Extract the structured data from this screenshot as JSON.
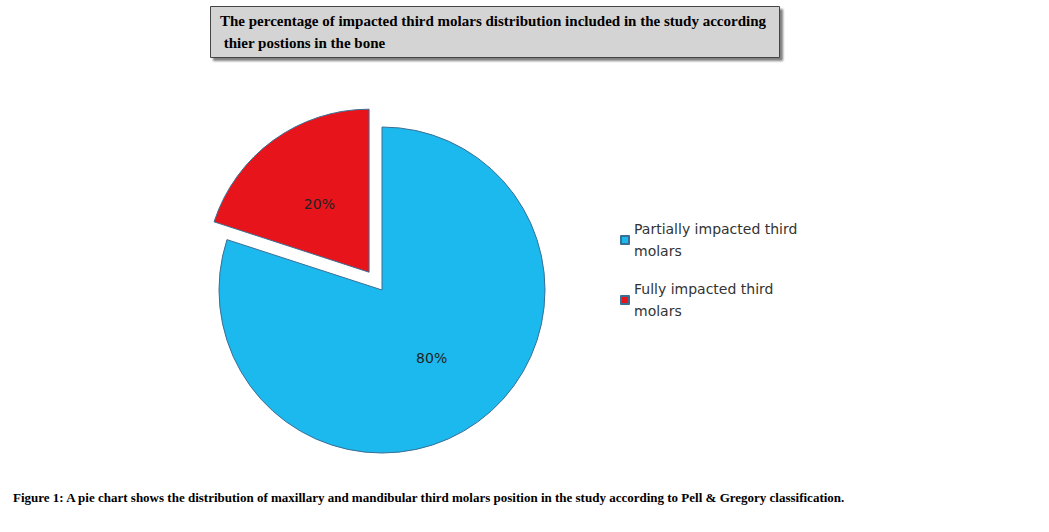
{
  "chart_data": {
    "type": "pie",
    "title": "The percentage of impacted third molars distribution included in the study according thier postions in the bone",
    "caption": "Figure 1: A pie chart shows the distribution of maxillary and mandibular third molars position in the study according to Pell & Gregory classification.",
    "categories": [
      "Partially impacted third molars",
      "Fully impacted third molars"
    ],
    "values": [
      80,
      20
    ],
    "value_labels": [
      "80%",
      "20%"
    ],
    "colors": [
      "#1cb9ee",
      "#e8141b"
    ],
    "data_labels": true,
    "legend": "right"
  }
}
